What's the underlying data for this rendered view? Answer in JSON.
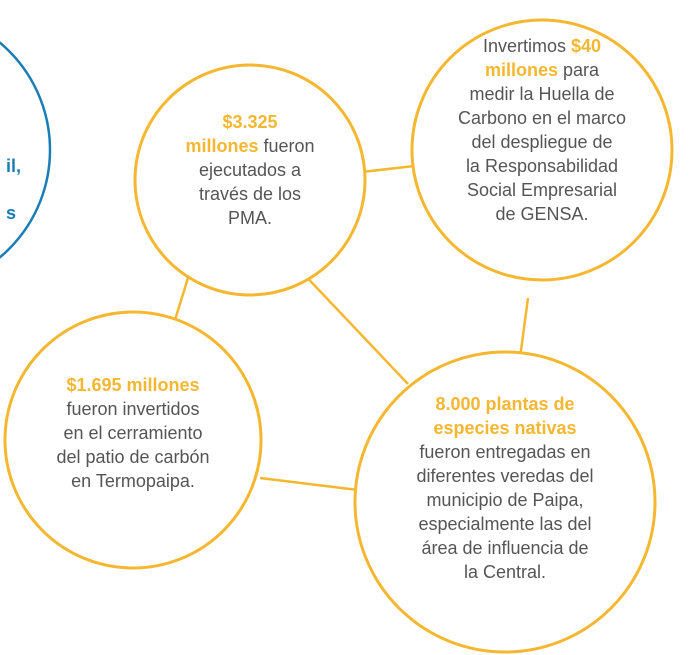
{
  "side_circle": {
    "lines": [
      "il,",
      "s"
    ]
  },
  "nodes": [
    {
      "lines": [
        [
          {
            "b": "$3.325"
          }
        ],
        [
          {
            "b": "millones"
          },
          {
            "t": " fueron"
          }
        ],
        [
          {
            "t": "ejecutados a"
          }
        ],
        [
          {
            "t": "través de los"
          }
        ],
        [
          {
            "t": "PMA."
          }
        ]
      ]
    },
    {
      "lines": [
        [
          {
            "t": "Invertimos "
          },
          {
            "b": "$40"
          }
        ],
        [
          {
            "b": "millones"
          },
          {
            "t": " para"
          }
        ],
        [
          {
            "t": "medir la Huella de"
          }
        ],
        [
          {
            "t": "Carbono en el marco"
          }
        ],
        [
          {
            "t": "del despliegue de"
          }
        ],
        [
          {
            "t": "la Responsabilidad"
          }
        ],
        [
          {
            "t": "Social Empresarial"
          }
        ],
        [
          {
            "t": "de GENSA."
          }
        ]
      ]
    },
    {
      "lines": [
        [
          {
            "b": "$1.695 millones"
          }
        ],
        [
          {
            "t": "fueron invertidos"
          }
        ],
        [
          {
            "t": "en el cerramiento"
          }
        ],
        [
          {
            "t": "del patio de carbón"
          }
        ],
        [
          {
            "t": "en Termopaipa."
          }
        ]
      ]
    },
    {
      "lines": [
        [
          {
            "b": "8.000 plantas de"
          }
        ],
        [
          {
            "b": "especies nativas"
          }
        ],
        [
          {
            "t": "fueron entregadas en"
          }
        ],
        [
          {
            "t": "diferentes veredas del"
          }
        ],
        [
          {
            "t": "municipio de Paipa,"
          }
        ],
        [
          {
            "t": "especialmente las del"
          }
        ],
        [
          {
            "t": "área de influencia de"
          }
        ],
        [
          {
            "t": "la Central."
          }
        ]
      ]
    }
  ]
}
